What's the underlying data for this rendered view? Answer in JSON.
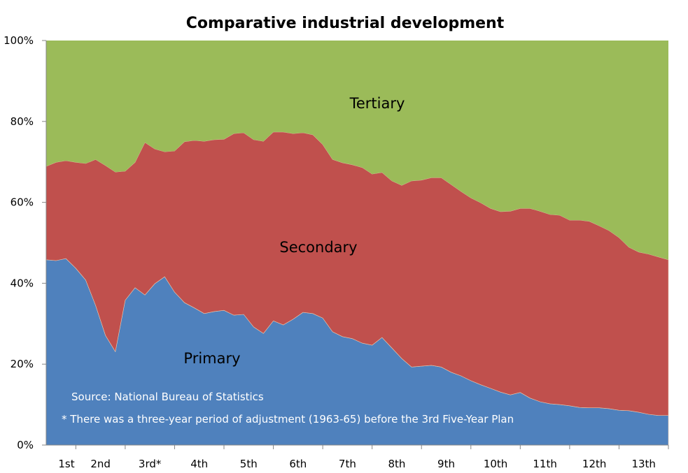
{
  "chart_data": {
    "type": "area",
    "stacked": "percent",
    "title": "Comparative industrial development",
    "xlabel": "",
    "ylabel": "",
    "ylim": [
      0,
      100
    ],
    "y_ticks": [
      "0%",
      "20%",
      "40%",
      "60%",
      "80%",
      "100%"
    ],
    "y_tick_values": [
      0,
      20,
      40,
      60,
      80,
      100
    ],
    "x_tick_labels": [
      "1st",
      "2nd",
      "3rd*",
      "4th",
      "5th",
      "6th",
      "7th",
      "8th",
      "9th",
      "10th",
      "11th",
      "12th",
      "13th"
    ],
    "x_tick_every": 5,
    "x_tick_offset": 3,
    "grid": false,
    "legend": "none (inline labels)",
    "series": [
      {
        "name": "Primary",
        "color": "#4F81BD",
        "values": [
          45.8,
          45.6,
          46.1,
          43.7,
          40.8,
          34.5,
          27.1,
          23.1,
          35.8,
          38.9,
          37.1,
          39.9,
          41.6,
          37.8,
          35.2,
          33.9,
          32.5,
          33.0,
          33.3,
          32.1,
          32.3,
          29.2,
          27.6,
          30.7,
          29.7,
          31.1,
          32.8,
          32.5,
          31.4,
          28.0,
          26.8,
          26.3,
          25.2,
          24.7,
          26.6,
          24.0,
          21.4,
          19.3,
          19.5,
          19.7,
          19.3,
          18.0,
          17.1,
          15.9,
          14.9,
          14.0,
          13.1,
          12.4,
          13.0,
          11.6,
          10.7,
          10.2,
          10.0,
          9.7,
          9.3,
          9.2,
          9.2,
          9.0,
          8.6,
          8.5,
          8.1,
          7.6,
          7.3,
          7.3
        ]
      },
      {
        "name": "Secondary",
        "color": "#C0504D",
        "values": [
          23.1,
          24.3,
          24.2,
          26.2,
          28.8,
          36.1,
          42.0,
          44.4,
          31.9,
          31.0,
          37.7,
          33.3,
          30.9,
          34.9,
          39.8,
          41.4,
          42.6,
          42.5,
          42.3,
          44.9,
          44.9,
          46.3,
          47.5,
          46.7,
          47.7,
          45.9,
          44.4,
          44.2,
          42.9,
          42.6,
          43.0,
          43.0,
          43.4,
          42.3,
          40.8,
          41.3,
          42.8,
          46.0,
          46.0,
          46.4,
          46.8,
          46.4,
          45.6,
          45.2,
          45.0,
          44.5,
          44.6,
          45.4,
          45.5,
          46.9,
          47.1,
          46.8,
          46.8,
          45.9,
          46.3,
          46.1,
          45.0,
          44.0,
          42.7,
          40.4,
          39.6,
          39.6,
          39.2,
          38.5
        ]
      },
      {
        "name": "Tertiary",
        "color": "#9BBB59",
        "values": [
          31.1,
          30.1,
          29.7,
          30.1,
          30.4,
          29.4,
          30.9,
          32.5,
          32.3,
          30.1,
          25.2,
          26.8,
          27.5,
          27.3,
          25.0,
          24.7,
          24.9,
          24.5,
          24.4,
          23.0,
          22.8,
          24.5,
          24.9,
          22.6,
          22.6,
          23.0,
          22.8,
          23.3,
          25.7,
          29.4,
          30.2,
          30.7,
          31.4,
          33.0,
          32.6,
          34.7,
          35.8,
          34.7,
          34.5,
          33.9,
          33.9,
          35.6,
          37.3,
          38.9,
          40.1,
          41.5,
          42.3,
          42.2,
          41.5,
          41.5,
          42.2,
          43.0,
          43.2,
          44.4,
          44.4,
          44.7,
          45.8,
          47.0,
          48.7,
          51.1,
          52.3,
          52.8,
          53.5,
          54.2
        ]
      }
    ],
    "annotations": [
      "Source: National Bureau of Statistics",
      "* There was a three-year period of adjustment (1963-65) before the 3rd Five-Year Plan"
    ]
  }
}
